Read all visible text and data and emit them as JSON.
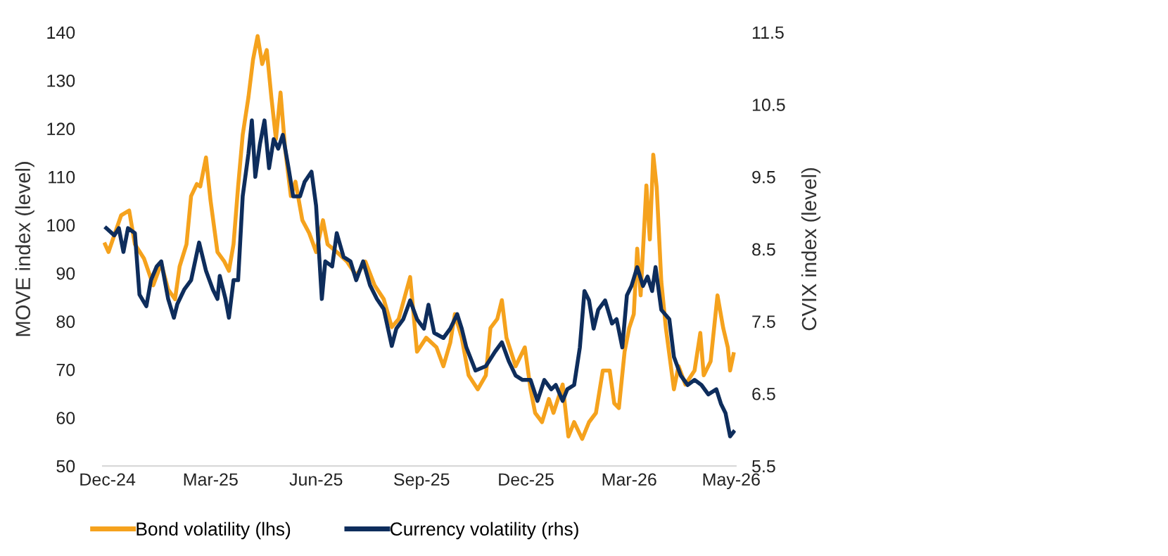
{
  "chart_data": {
    "type": "line",
    "ylabel": "MOVE index (level)",
    "y2label": "CVIX index (level)",
    "xlim": [
      "2024-11-27",
      "2026-06-02"
    ],
    "xticks": [
      {
        "value": "2024-12-01",
        "label": "Dec-24"
      },
      {
        "value": "2025-03-01",
        "label": "Mar-25"
      },
      {
        "value": "2025-06-01",
        "label": "Jun-25"
      },
      {
        "value": "2025-09-01",
        "label": "Sep-25"
      },
      {
        "value": "2025-12-01",
        "label": "Dec-25"
      },
      {
        "value": "2026-03-01",
        "label": "Mar-26"
      },
      {
        "value": "2026-05-29",
        "label": "May-26"
      }
    ],
    "ylim": [
      50,
      140
    ],
    "yticks": [
      50,
      60,
      70,
      80,
      90,
      100,
      110,
      120,
      130,
      140
    ],
    "y2lim": [
      5.5,
      11.5
    ],
    "y2ticks": [
      5.5,
      6.5,
      7.5,
      8.5,
      9.5,
      10.5,
      11.5
    ],
    "grid": false,
    "legend": "bottom",
    "line_style": "solid",
    "marker": "none",
    "series": [
      {
        "name": "Bond volatility (lhs)",
        "color": "#f5a21d",
        "axis": "y",
        "x": [
          "2024-11-29",
          "2024-12-02",
          "2024-12-13",
          "2024-12-20",
          "2024-12-25",
          "2025-01-02",
          "2025-01-10",
          "2025-01-17",
          "2025-01-23",
          "2025-01-29",
          "2025-02-02",
          "2025-02-08",
          "2025-02-12",
          "2025-02-17",
          "2025-02-20",
          "2025-02-25",
          "2025-03-01",
          "2025-03-07",
          "2025-03-13",
          "2025-03-17",
          "2025-03-21",
          "2025-03-25",
          "2025-03-29",
          "2025-04-03",
          "2025-04-07",
          "2025-04-11",
          "2025-04-15",
          "2025-04-19",
          "2025-04-23",
          "2025-04-27",
          "2025-05-01",
          "2025-05-05",
          "2025-05-10",
          "2025-05-14",
          "2025-05-20",
          "2025-05-26",
          "2025-06-01",
          "2025-06-07",
          "2025-06-11",
          "2025-06-19",
          "2025-06-28",
          "2025-07-06",
          "2025-07-14",
          "2025-07-22",
          "2025-07-30",
          "2025-08-06",
          "2025-08-12",
          "2025-08-22",
          "2025-08-28",
          "2025-09-05",
          "2025-09-14",
          "2025-09-20",
          "2025-09-26",
          "2025-09-30",
          "2025-10-06",
          "2025-10-12",
          "2025-10-20",
          "2025-10-27",
          "2025-10-31",
          "2025-11-06",
          "2025-11-10",
          "2025-11-14",
          "2025-11-22",
          "2025-11-30",
          "2025-12-05",
          "2025-12-09",
          "2025-12-15",
          "2025-12-21",
          "2025-12-25",
          "2026-01-02",
          "2026-01-07",
          "2026-01-12",
          "2026-01-19",
          "2026-01-25",
          "2026-01-31",
          "2026-02-06",
          "2026-02-12",
          "2026-02-16",
          "2026-02-20",
          "2026-02-25",
          "2026-03-01",
          "2026-03-05",
          "2026-03-08",
          "2026-03-11",
          "2026-03-16",
          "2026-03-19",
          "2026-03-22",
          "2026-03-25",
          "2026-03-29",
          "2026-04-02",
          "2026-04-09",
          "2026-04-13",
          "2026-04-19",
          "2026-04-27",
          "2026-05-02",
          "2026-05-05",
          "2026-05-11",
          "2026-05-17",
          "2026-05-22",
          "2026-05-26",
          "2026-05-28",
          "2026-05-31"
        ],
        "values": [
          96,
          94.4,
          102,
          103,
          96,
          93,
          87.5,
          92,
          86.6,
          84.6,
          91.4,
          96,
          106,
          108.5,
          108,
          114,
          105,
          94.4,
          92.4,
          90.5,
          96,
          108,
          118.7,
          126.5,
          134.3,
          139.2,
          133.4,
          136.3,
          126.5,
          117.8,
          127.5,
          115.8,
          106,
          109,
          101,
          98.3,
          94.4,
          101,
          96,
          94.4,
          92.4,
          89.5,
          92.4,
          87.5,
          84.6,
          78.8,
          80.5,
          89.2,
          73.7,
          76.6,
          74.6,
          70.7,
          75.6,
          81.5,
          76.6,
          68.8,
          65.9,
          68.8,
          78.6,
          80.5,
          84.4,
          76.6,
          70.7,
          74.6,
          65.9,
          61,
          59.1,
          63.9,
          61,
          66.9,
          56.1,
          59.1,
          55.6,
          59.1,
          61,
          69.8,
          69.8,
          63,
          62,
          73.7,
          78.6,
          81.5,
          95.1,
          85.4,
          108.2,
          97,
          114.6,
          107.8,
          88.3,
          78.6,
          65.9,
          70.7,
          66.9,
          69.8,
          77.6,
          68.8,
          71.7,
          85.4,
          78.6,
          74.6,
          69.8,
          73.2
        ]
      },
      {
        "name": "Currency volatility (rhs)",
        "color": "#0e2d5c",
        "axis": "y2",
        "x": [
          "2024-11-30",
          "2024-12-07",
          "2024-12-11",
          "2024-12-15",
          "2024-12-19",
          "2024-12-25",
          "2024-12-29",
          "2025-01-04",
          "2025-01-08",
          "2025-01-13",
          "2025-01-17",
          "2025-01-23",
          "2025-01-28",
          "2025-01-31",
          "2025-02-06",
          "2025-02-12",
          "2025-02-19",
          "2025-02-25",
          "2025-03-03",
          "2025-03-07",
          "2025-03-09",
          "2025-03-14",
          "2025-03-17",
          "2025-03-21",
          "2025-03-25",
          "2025-03-29",
          "2025-04-03",
          "2025-04-06",
          "2025-04-09",
          "2025-04-13",
          "2025-04-17",
          "2025-04-21",
          "2025-04-25",
          "2025-04-29",
          "2025-05-03",
          "2025-05-08",
          "2025-05-12",
          "2025-05-18",
          "2025-05-22",
          "2025-05-28",
          "2025-06-01",
          "2025-06-03",
          "2025-06-06",
          "2025-06-09",
          "2025-06-15",
          "2025-06-19",
          "2025-06-25",
          "2025-07-01",
          "2025-07-06",
          "2025-07-12",
          "2025-07-18",
          "2025-07-24",
          "2025-07-30",
          "2025-08-06",
          "2025-08-10",
          "2025-08-16",
          "2025-08-22",
          "2025-08-28",
          "2025-09-03",
          "2025-09-07",
          "2025-09-12",
          "2025-09-20",
          "2025-09-26",
          "2025-10-02",
          "2025-10-06",
          "2025-10-10",
          "2025-10-18",
          "2025-10-27",
          "2025-11-04",
          "2025-11-10",
          "2025-11-16",
          "2025-11-22",
          "2025-11-28",
          "2025-12-05",
          "2025-12-11",
          "2025-12-17",
          "2025-12-23",
          "2025-12-27",
          "2026-01-02",
          "2026-01-06",
          "2026-01-12",
          "2026-01-17",
          "2026-01-21",
          "2026-01-25",
          "2026-01-29",
          "2026-02-02",
          "2026-02-08",
          "2026-02-14",
          "2026-02-18",
          "2026-02-23",
          "2026-02-27",
          "2026-03-03",
          "2026-03-08",
          "2026-03-13",
          "2026-03-17",
          "2026-03-21",
          "2026-03-24",
          "2026-03-29",
          "2026-04-05",
          "2026-04-09",
          "2026-04-15",
          "2026-04-21",
          "2026-04-27",
          "2026-05-03",
          "2026-05-09",
          "2026-05-16",
          "2026-05-20",
          "2026-05-24",
          "2026-05-28",
          "2026-05-31"
        ],
        "values": [
          8.79,
          8.69,
          8.79,
          8.46,
          8.79,
          8.72,
          7.87,
          7.71,
          8.07,
          8.26,
          8.33,
          7.81,
          7.55,
          7.74,
          7.94,
          8.07,
          8.59,
          8.2,
          7.94,
          7.81,
          8.13,
          7.81,
          7.55,
          8.07,
          8.07,
          9.23,
          9.82,
          10.28,
          9.5,
          9.95,
          10.28,
          9.62,
          10.02,
          9.89,
          10.08,
          9.62,
          9.23,
          9.23,
          9.43,
          9.57,
          9.1,
          8.59,
          7.81,
          8.33,
          8.26,
          8.72,
          8.39,
          8.33,
          8.07,
          8.33,
          8,
          7.81,
          7.67,
          7.16,
          7.4,
          7.53,
          7.79,
          7.53,
          7.4,
          7.73,
          7.34,
          7.27,
          7.4,
          7.6,
          7.4,
          7.14,
          6.82,
          6.88,
          7.08,
          7.21,
          6.95,
          6.75,
          6.69,
          6.69,
          6.4,
          6.69,
          6.56,
          6.62,
          6.4,
          6.56,
          6.62,
          7.14,
          7.92,
          7.79,
          7.4,
          7.66,
          7.79,
          7.47,
          7.53,
          7.14,
          7.86,
          7.99,
          8.25,
          7.99,
          8.12,
          7.92,
          8.25,
          7.66,
          7.53,
          7.01,
          6.75,
          6.62,
          6.69,
          6.62,
          6.49,
          6.56,
          6.36,
          6.23,
          5.91,
          5.97
        ]
      }
    ]
  }
}
